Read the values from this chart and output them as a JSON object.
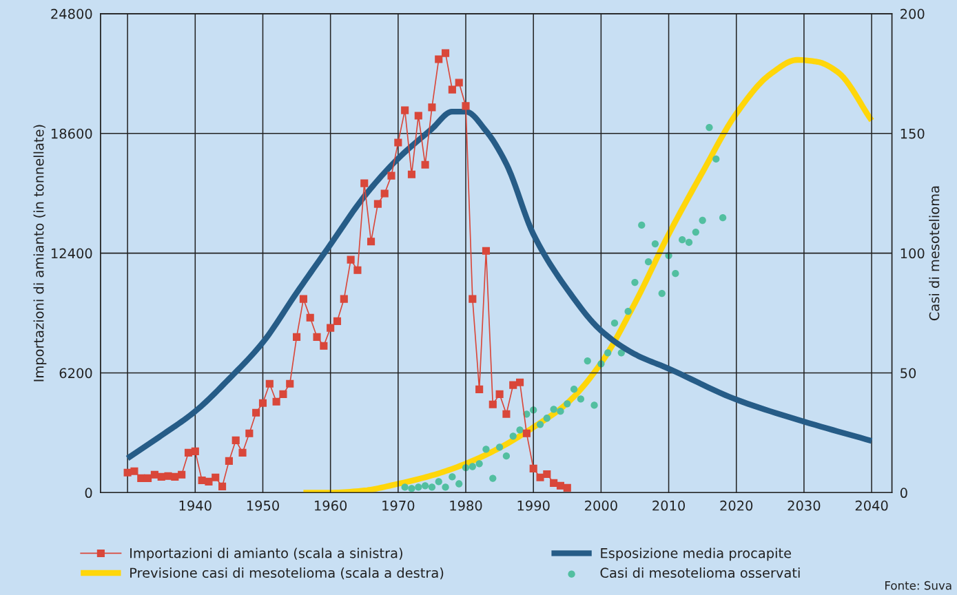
{
  "chart_data": {
    "type": "line",
    "ylabel": "Importazioni di amianto (in tonnellate)",
    "y2label": "Casi di mesotelioma",
    "xlim": [
      1926,
      2043
    ],
    "xticks": [
      {
        "value": 1930,
        "label": null
      },
      1940,
      1950,
      1960,
      1970,
      1980,
      1990,
      2000,
      2010,
      2020,
      2030,
      2040
    ],
    "ylim": [
      0,
      24800
    ],
    "yticks": [
      0,
      6200,
      12400,
      18600,
      24800
    ],
    "y2lim": [
      0,
      200
    ],
    "y2ticks": [
      0,
      50,
      100,
      150,
      200
    ],
    "grid": true,
    "legend": "bottom",
    "annotations": [
      "Fonte: Suva"
    ],
    "series": [
      {
        "name": "Importazioni di amianto (scala a sinistra)",
        "color": "#d9473a",
        "marker": "square",
        "line_style": "solid",
        "x": [
          1930,
          1931,
          1932,
          1933,
          1934,
          1935,
          1936,
          1937,
          1938,
          1939,
          1940,
          1941,
          1942,
          1943,
          1944,
          1945,
          1946,
          1947,
          1948,
          1949,
          1950,
          1951,
          1952,
          1953,
          1954,
          1955,
          1956,
          1957,
          1958,
          1959,
          1960,
          1961,
          1962,
          1963,
          1964,
          1965,
          1966,
          1967,
          1968,
          1969,
          1970,
          1971,
          1972,
          1973,
          1974,
          1975,
          1976,
          1977,
          1978,
          1979,
          1980,
          1981,
          1982,
          1983,
          1984,
          1985,
          1986,
          1987,
          1988,
          1989,
          1990,
          1991,
          1992,
          1993,
          1994,
          1995
        ],
        "values": [
          1040,
          1110,
          750,
          750,
          930,
          820,
          860,
          820,
          930,
          2070,
          2140,
          640,
          570,
          790,
          320,
          1640,
          2710,
          2070,
          3070,
          4140,
          4640,
          5640,
          4710,
          5100,
          5640,
          8060,
          10030,
          9060,
          8060,
          7600,
          8530,
          8880,
          10030,
          12060,
          11520,
          16020,
          13000,
          14950,
          15490,
          16410,
          18130,
          19800,
          16480,
          19520,
          16980,
          19950,
          22440,
          22760,
          20870,
          21230,
          20020,
          10030,
          5350,
          12520,
          4570,
          5100,
          4070,
          5570,
          5710,
          3070,
          1250,
          790,
          960,
          500,
          360,
          250
        ]
      },
      {
        "name": "Esposizione media procapite",
        "color": "#265c87",
        "marker": "none",
        "line_style": "solid",
        "x": [
          1930,
          1935,
          1940,
          1945,
          1950,
          1955,
          1960,
          1965,
          1970,
          1975,
          1978,
          1980,
          1983,
          1986,
          1990,
          1995,
          2000,
          2005,
          2010,
          2020,
          2030,
          2040
        ],
        "values": [
          1780,
          2960,
          4210,
          5890,
          7780,
          10350,
          12850,
          15340,
          17300,
          18840,
          19730,
          19730,
          18730,
          17020,
          13380,
          10530,
          8390,
          7170,
          6420,
          4820,
          3680,
          2680
        ]
      },
      {
        "name": "Previsione casi di mesotelioma (scala a destra)",
        "axis": "y2",
        "color": "#ffd60a",
        "marker": "none",
        "line_style": "solid",
        "x": [
          1956,
          1960,
          1965,
          1970,
          1975,
          1980,
          1985,
          1990,
          1995,
          2000,
          2005,
          2010,
          2015,
          2020,
          2025,
          2029,
          2032,
          2035,
          2040
        ],
        "values": [
          0,
          0,
          0.9,
          3.7,
          7.2,
          12.1,
          18.7,
          27.3,
          37.4,
          54.1,
          79.1,
          107.9,
          133.8,
          158.3,
          174.7,
          180.7,
          179.9,
          175.6,
          155.4
        ]
      },
      {
        "name": "Casi di mesotelioma osservati",
        "type": "scatter",
        "axis": "y2",
        "color": "#52bfa0",
        "marker": "circle",
        "x": [
          1971,
          1972,
          1973,
          1974,
          1975,
          1976,
          1977,
          1978,
          1979,
          1980,
          1981,
          1982,
          1983,
          1984,
          1985,
          1986,
          1987,
          1988,
          1989,
          1990,
          1991,
          1992,
          1993,
          1994,
          1995,
          1996,
          1997,
          1998,
          1999,
          2000,
          2001,
          2002,
          2003,
          2004,
          2005,
          2006,
          2007,
          2008,
          2009,
          2010,
          2011,
          2012,
          2013,
          2014,
          2015,
          2016,
          2017,
          2018
        ],
        "values": [
          2.3,
          1.7,
          2.3,
          2.9,
          2.3,
          4.6,
          2.3,
          6.6,
          3.7,
          10.4,
          10.9,
          12.1,
          18.1,
          6.0,
          19.0,
          15.3,
          23.6,
          26.2,
          32.8,
          34.5,
          28.5,
          31.1,
          34.8,
          34.0,
          37.1,
          43.2,
          39.1,
          55.0,
          36.5,
          53.8,
          58.4,
          70.8,
          58.4,
          75.7,
          87.8,
          111.7,
          96.4,
          103.9,
          83.2,
          99.0,
          91.5,
          105.6,
          104.5,
          108.8,
          113.7,
          152.5,
          139.3,
          114.8
        ]
      }
    ]
  }
}
